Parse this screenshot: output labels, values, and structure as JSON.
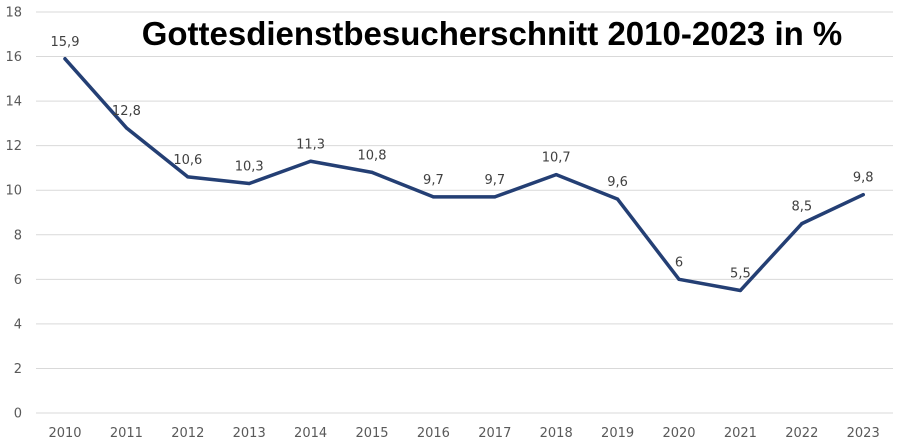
{
  "chart_data": {
    "type": "line",
    "title": "Gottesdienstbesucherschnitt 2010-2023 in %",
    "xlabel": "",
    "ylabel": "",
    "categories": [
      "2010",
      "2011",
      "2012",
      "2013",
      "2014",
      "2015",
      "2016",
      "2017",
      "2018",
      "2019",
      "2020",
      "2021",
      "2022",
      "2023"
    ],
    "series": [
      {
        "values": [
          15.9,
          12.8,
          10.6,
          10.3,
          11.3,
          10.8,
          9.7,
          9.7,
          10.7,
          9.6,
          6,
          5.5,
          8.5,
          9.8
        ]
      }
    ],
    "data_labels": [
      "15,9",
      "12,8",
      "10,6",
      "10,3",
      "11,3",
      "10,8",
      "9,7",
      "9,7",
      "10,7",
      "9,6",
      "6",
      "5,5",
      "8,5",
      "9,8"
    ],
    "ylim": [
      0,
      18
    ],
    "yticks": [
      0,
      2,
      4,
      6,
      8,
      10,
      12,
      14,
      16,
      18
    ],
    "grid": true,
    "line_color": "#243f74"
  }
}
